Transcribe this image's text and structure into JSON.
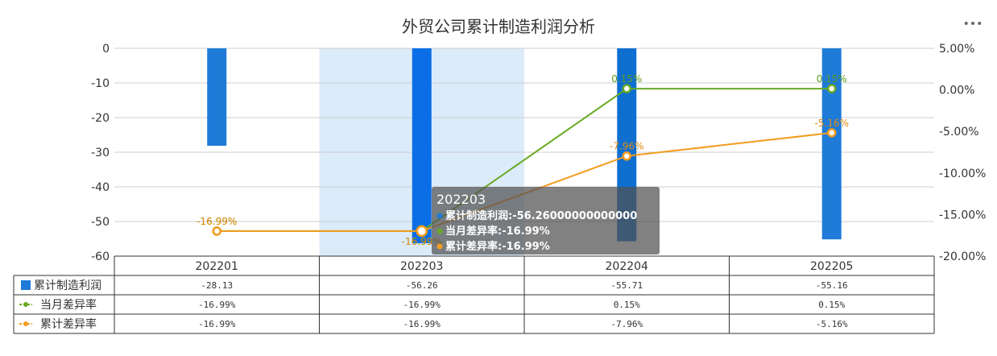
{
  "chart_data": {
    "type": "bar+line",
    "title": "外贸公司累计制造利润分析",
    "categories": [
      "202201",
      "202203",
      "202204",
      "202205"
    ],
    "left_axis": {
      "min": -60,
      "max": 0,
      "ticks": [
        "0",
        "-10",
        "-20",
        "-30",
        "-40",
        "-50",
        "-60"
      ]
    },
    "right_axis": {
      "min": -20,
      "max": 5,
      "ticks": [
        "5.00%",
        "0.00%",
        "-5.00%",
        "-10.00%",
        "-15.00%",
        "-20.00%"
      ]
    },
    "grid": true,
    "series": [
      {
        "name": "累计制造利润",
        "kind": "bar",
        "axis": "left",
        "color": "#1f7bd8",
        "values": [
          -28.13,
          -56.26,
          -55.71,
          -55.16
        ],
        "table_values": [
          "-28.13",
          "-56.26",
          "-55.71",
          "-55.16"
        ]
      },
      {
        "name": "当月差异率",
        "kind": "line",
        "axis": "right",
        "color": "#6aa924",
        "values": [
          -16.99,
          -16.99,
          0.15,
          0.15
        ],
        "labels": [
          "-16.99%",
          "-16.99%",
          "0.15%",
          "0.15%"
        ],
        "table_values": [
          "-16.99%",
          "-16.99%",
          "0.15%",
          "0.15%"
        ]
      },
      {
        "name": "累计差异率",
        "kind": "line",
        "axis": "right",
        "color": "#f39c1f",
        "values": [
          -16.99,
          -16.99,
          -7.96,
          -5.16
        ],
        "labels": [
          "-16.99%",
          "-16.99%",
          "-7.96%",
          "-5.16%"
        ],
        "table_values": [
          "-16.99%",
          "-16.99%",
          "-7.96%",
          "-5.16%"
        ]
      }
    ],
    "highlight_category_index": 1,
    "tooltip": {
      "title": "202203",
      "lines": [
        "累计制造利润:-56.26000000000000",
        "当月差异率:-16.99%",
        "累计差异率:-16.99%"
      ]
    }
  },
  "toolbar": {
    "menu_icon": "more-dots-icon",
    "menu_label": "•••"
  }
}
